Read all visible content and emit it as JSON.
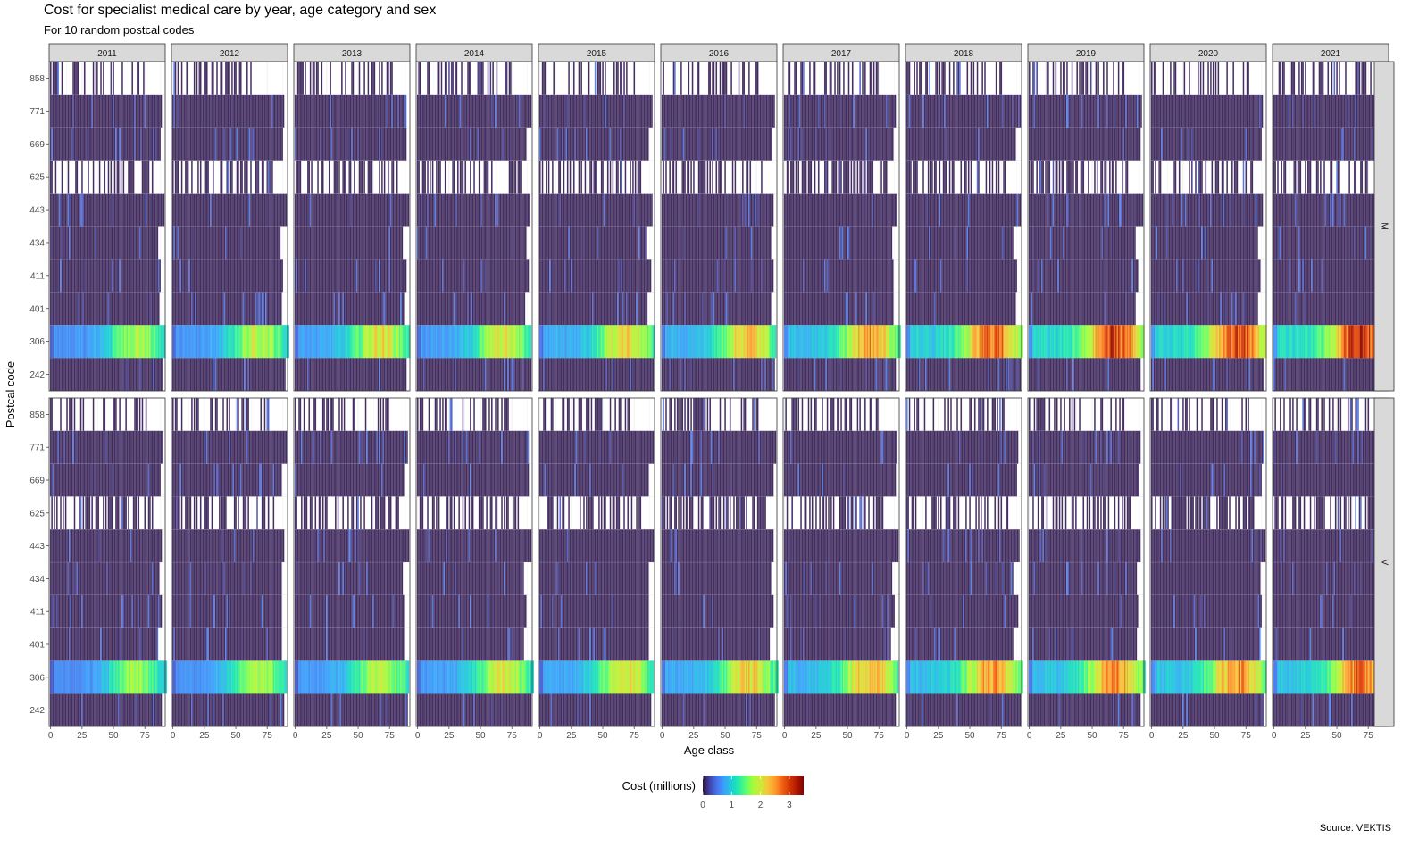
{
  "title": "Cost for specialist medical care by year, age category and sex",
  "subtitle": "For 10 random postcal codes",
  "caption": "Source: VEKTIS",
  "chart_data": {
    "type": "heatmap",
    "facet_columns": [
      "2011",
      "2012",
      "2013",
      "2014",
      "2015",
      "2016",
      "2017",
      "2018",
      "2019",
      "2020",
      "2021"
    ],
    "facet_rows": [
      "M",
      "V"
    ],
    "xlabel": "Age class",
    "ylabel": "Postcal code",
    "xticks": [
      0,
      25,
      50,
      75
    ],
    "xlim": [
      0,
      90
    ],
    "postal_codes": [
      "242",
      "306",
      "401",
      "411",
      "434",
      "443",
      "625",
      "669",
      "771",
      "858"
    ],
    "legend": {
      "title": "Cost (millions)",
      "position": "bottom",
      "ticks": [
        0,
        1,
        2,
        3
      ],
      "range": [
        0,
        3.5
      ],
      "colors": [
        "#30123b",
        "#4145ab",
        "#4675ed",
        "#39a2fc",
        "#1bcfd4",
        "#24eca6",
        "#61fc6c",
        "#a4fc3b",
        "#d1e834",
        "#f3c63a",
        "#fe9b2d",
        "#f36315",
        "#d93806",
        "#b11901",
        "#7a0403"
      ]
    },
    "series": [
      {
        "sex": "M",
        "postal_code": "306",
        "peak_cost_by_year": [
          1.8,
          1.9,
          2.1,
          2.0,
          2.2,
          2.3,
          2.5,
          2.8,
          3.0,
          3.0,
          3.2
        ]
      },
      {
        "sex": "V",
        "postal_code": "306",
        "peak_cost_by_year": [
          1.7,
          1.8,
          1.9,
          2.0,
          2.1,
          2.2,
          2.4,
          2.5,
          2.6,
          2.6,
          2.7
        ]
      }
    ],
    "background_cost": 0.05
  }
}
